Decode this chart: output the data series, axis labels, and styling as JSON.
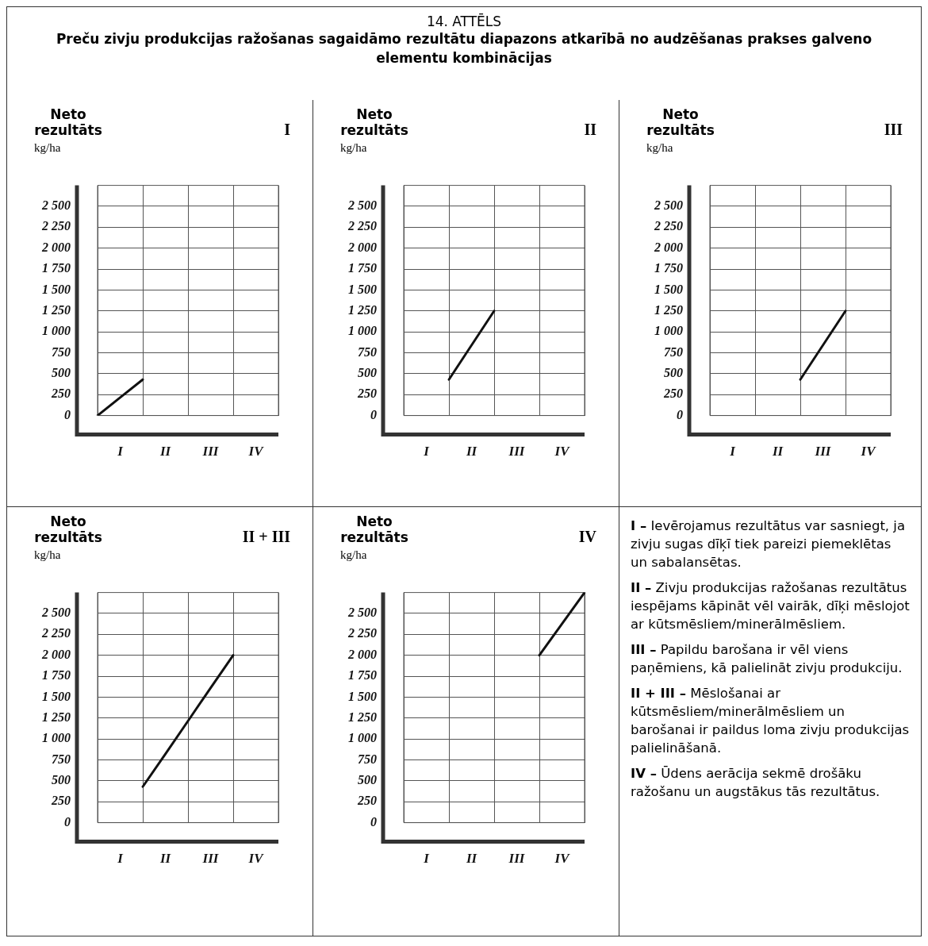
{
  "chart_data": [
    {
      "type": "other",
      "title": "14. ATTĒLS",
      "subtitle": "Preču zivju produkcijas ražošanas sagaidāmo rezultātu diapazons atkarībā no audzēšanas prakses galveno elementu kombinācijas"
    },
    {
      "type": "line",
      "title": "I",
      "ylabel": "Neto rezultāts",
      "annotations": [
        "kg/ha"
      ],
      "categories": [
        null,
        "I",
        null,
        "II",
        null,
        "III",
        null,
        "IV",
        null
      ],
      "values": [
        0,
        215,
        430,
        null,
        null,
        null,
        null,
        null,
        null
      ],
      "color": "#111111",
      "marker": "none",
      "grid": true,
      "ylim": [
        0,
        2750
      ],
      "yticks": [
        0,
        250,
        500,
        750,
        {
          "value": 1000,
          "label": "1 000"
        },
        {
          "value": 1250,
          "label": "1 250"
        },
        {
          "value": 1500,
          "label": "1 500"
        },
        {
          "value": 1750,
          "label": "1 750"
        },
        {
          "value": 2000,
          "label": "2 000"
        },
        {
          "value": 2250,
          "label": "2 250"
        },
        {
          "value": 2500,
          "label": "2 500"
        }
      ]
    },
    {
      "type": "line",
      "title": "II",
      "ylabel": "Neto rezultāts",
      "annotations": [
        "kg/ha"
      ],
      "categories": [
        null,
        "I",
        null,
        "II",
        null,
        "III",
        null,
        "IV",
        null
      ],
      "values": [
        null,
        null,
        430,
        840,
        1250,
        null,
        null,
        null,
        null
      ],
      "color": "#111111",
      "marker": "none",
      "grid": true,
      "ylim": [
        0,
        2750
      ],
      "yticks": [
        0,
        250,
        500,
        750,
        {
          "value": 1000,
          "label": "1 000"
        },
        {
          "value": 1250,
          "label": "1 250"
        },
        {
          "value": 1500,
          "label": "1 500"
        },
        {
          "value": 1750,
          "label": "1 750"
        },
        {
          "value": 2000,
          "label": "2 000"
        },
        {
          "value": 2250,
          "label": "2 250"
        },
        {
          "value": 2500,
          "label": "2 500"
        }
      ]
    },
    {
      "type": "line",
      "title": "III",
      "ylabel": "Neto rezultāts",
      "annotations": [
        "kg/ha"
      ],
      "categories": [
        null,
        "I",
        null,
        "II",
        null,
        "III",
        null,
        "IV",
        null
      ],
      "values": [
        null,
        null,
        null,
        null,
        430,
        840,
        1250,
        null,
        null
      ],
      "color": "#111111",
      "marker": "none",
      "grid": true,
      "ylim": [
        0,
        2750
      ],
      "yticks": [
        0,
        250,
        500,
        750,
        {
          "value": 1000,
          "label": "1 000"
        },
        {
          "value": 1250,
          "label": "1 250"
        },
        {
          "value": 1500,
          "label": "1 500"
        },
        {
          "value": 1750,
          "label": "1 750"
        },
        {
          "value": 2000,
          "label": "2 000"
        },
        {
          "value": 2250,
          "label": "2 250"
        },
        {
          "value": 2500,
          "label": "2 500"
        }
      ]
    },
    {
      "type": "line",
      "title": "II + III",
      "ylabel": "Neto rezultāts",
      "annotations": [
        "kg/ha"
      ],
      "categories": [
        null,
        "I",
        null,
        "II",
        null,
        "III",
        null,
        "IV",
        null
      ],
      "values": [
        null,
        null,
        430,
        820,
        1215,
        1610,
        2000,
        null,
        null
      ],
      "color": "#111111",
      "marker": "none",
      "grid": true,
      "ylim": [
        0,
        2750
      ],
      "yticks": [
        0,
        250,
        500,
        750,
        {
          "value": 1000,
          "label": "1 000"
        },
        {
          "value": 1250,
          "label": "1 250"
        },
        {
          "value": 1500,
          "label": "1 500"
        },
        {
          "value": 1750,
          "label": "1 750"
        },
        {
          "value": 2000,
          "label": "2 000"
        },
        {
          "value": 2250,
          "label": "2 250"
        },
        {
          "value": 2500,
          "label": "2 500"
        }
      ]
    },
    {
      "type": "line",
      "title": "IV",
      "ylabel": "Neto rezultāts",
      "annotations": [
        "kg/ha"
      ],
      "categories": [
        null,
        "I",
        null,
        "II",
        null,
        "III",
        null,
        "IV",
        null
      ],
      "values": [
        null,
        null,
        null,
        null,
        null,
        null,
        2000,
        2375,
        2750
      ],
      "color": "#111111",
      "marker": "none",
      "grid": true,
      "ylim": [
        0,
        2750
      ],
      "yticks": [
        0,
        250,
        500,
        750,
        {
          "value": 1000,
          "label": "1 000"
        },
        {
          "value": 1250,
          "label": "1 250"
        },
        {
          "value": 1500,
          "label": "1 500"
        },
        {
          "value": 1750,
          "label": "1 750"
        },
        {
          "value": 2000,
          "label": "2 000"
        },
        {
          "value": 2250,
          "label": "2 250"
        },
        {
          "value": 2500,
          "label": "2 500"
        }
      ]
    },
    {
      "type": "other",
      "annotations": [
        "I – Ievērojamus rezultātus var sasniegt, ja zivju sugas dīķī tiek pareizi piemeklētas un sabalansētas.",
        "II – Zivju produkcijas ražošanas rezultātus iespējams kāpināt vēl vairāk, dīķi mēslojot ar kūtsmēsliem/minerālmēsliem.",
        "III – Papildu barošana ir vēl viens paņēmiens, kā palielināt zivju produkciju.",
        "II + III – Mēslošanai ar kūtsmēsliem/minerālmēsliem un barošanai ir paildus loma zivju produkcijas palielināšanā.",
        "IV – Ūdens aerācija sekmē drošāku ražošanu un augstākus tās rezultātus."
      ]
    }
  ]
}
